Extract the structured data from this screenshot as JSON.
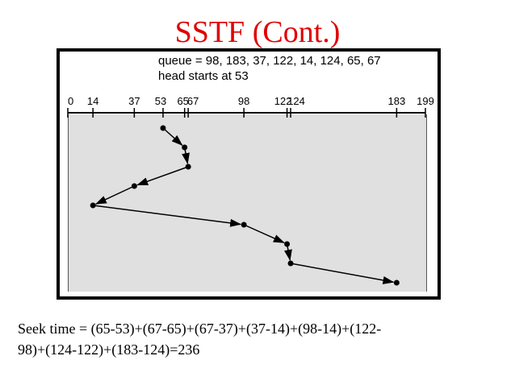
{
  "slide": {
    "title": "SSTF (Cont.)",
    "seek_time_line1": "Seek time = (65-53)+(67-65)+(67-37)+(37-14)+(98-14)+(122-",
    "seek_time_line2": "98)+(124-122)+(183-124)=236"
  },
  "figure": {
    "queue_line": "queue = 98, 183, 37, 122, 14, 124, 65, 67",
    "head_line": "head starts at 53",
    "cylinder_min": 0,
    "cylinder_max": 199,
    "tick_values": [
      14,
      37,
      53,
      65,
      67,
      98,
      122,
      124,
      183
    ],
    "tick_labels": [
      "0",
      "14",
      "37",
      "53",
      "65",
      "67",
      "98",
      "122",
      "124",
      "183",
      "199"
    ],
    "head_path": [
      53,
      65,
      67,
      37,
      14,
      98,
      122,
      124,
      183
    ],
    "colors": {
      "line": "#000000",
      "background": "#e0e0e0",
      "title": "#e00000"
    }
  }
}
